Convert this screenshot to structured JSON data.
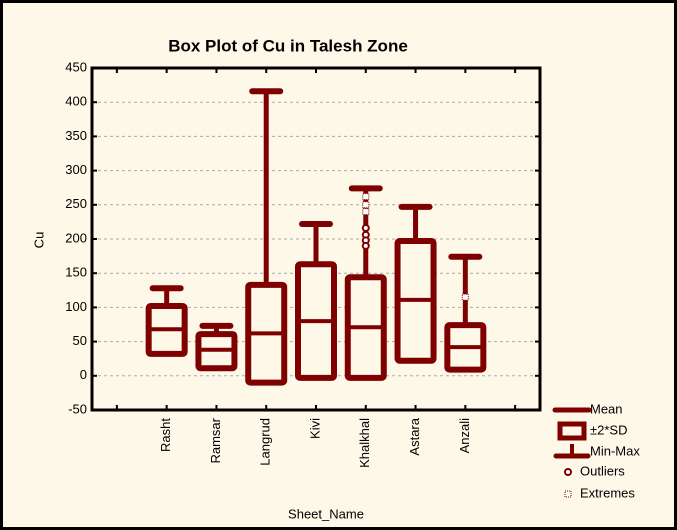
{
  "chart_data": {
    "type": "box",
    "title": "Box Plot of Cu in Talesh Zone",
    "xlabel": "Sheet_Name",
    "ylabel": "Cu",
    "categories": [
      "Rasht",
      "Ramsar",
      "Langrud",
      "Kivi",
      "Khalkhal",
      "Astara",
      "Anzali"
    ],
    "ylim": [
      -50,
      450
    ],
    "yticks": [
      -50,
      0,
      50,
      100,
      150,
      200,
      250,
      300,
      350,
      400,
      450
    ],
    "grid": true,
    "color": "#7f0000",
    "legend": [
      "Mean",
      "±2*SD",
      "Min-Max",
      "Outliers",
      "Extremes"
    ],
    "legend_position": "bottom-right",
    "boxes": [
      {
        "mean": 68,
        "sd_high": 102,
        "sd_low": 32,
        "min": 35,
        "max": 128,
        "outliers": [],
        "extremes": []
      },
      {
        "mean": 38,
        "sd_high": 61,
        "sd_low": 11,
        "min": 12,
        "max": 73,
        "outliers": [],
        "extremes": []
      },
      {
        "mean": 62,
        "sd_high": 133,
        "sd_low": -10,
        "min": 0,
        "max": 416,
        "outliers": [],
        "extremes": []
      },
      {
        "mean": 80,
        "sd_high": 163,
        "sd_low": -3,
        "min": 0,
        "max": 222,
        "outliers": [],
        "extremes": []
      },
      {
        "mean": 71,
        "sd_high": 144,
        "sd_low": -3,
        "min": 0,
        "max": 274,
        "outliers": [
          216,
          206,
          198,
          190
        ],
        "extremes": [
          262,
          250,
          240
        ]
      },
      {
        "mean": 111,
        "sd_high": 197,
        "sd_low": 22,
        "min": 30,
        "max": 247,
        "outliers": [],
        "extremes": []
      },
      {
        "mean": 42,
        "sd_high": 74,
        "sd_low": 9,
        "min": 10,
        "max": 174,
        "outliers": [],
        "extremes": [
          115
        ]
      }
    ]
  }
}
